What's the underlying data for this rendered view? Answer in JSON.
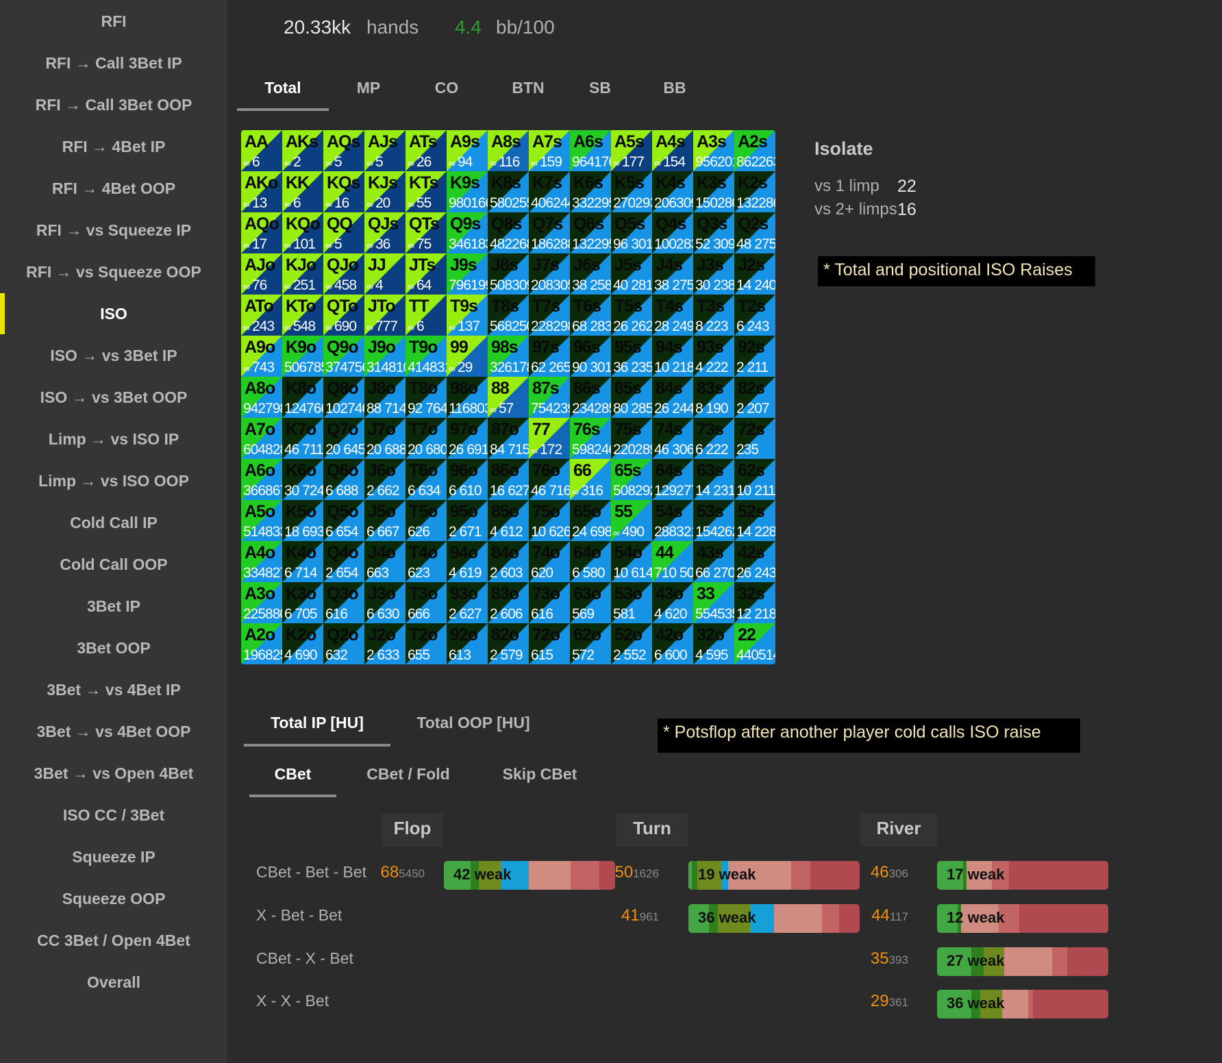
{
  "sidebar": {
    "items": [
      "RFI",
      "RFI → Call 3Bet IP",
      "RFI → Call 3Bet OOP",
      "RFI → 4Bet IP",
      "RFI → 4Bet OOP",
      "RFI → vs Squeeze IP",
      "RFI → vs Squeeze OOP",
      "ISO",
      "ISO → vs 3Bet IP",
      "ISO → vs 3Bet OOP",
      "Limp → vs ISO IP",
      "Limp → vs ISO OOP",
      "Cold Call IP",
      "Cold Call OOP",
      "3Bet IP",
      "3Bet OOP",
      "3Bet → vs 4Bet IP",
      "3Bet → vs 4Bet OOP",
      "3Bet → vs Open 4Bet",
      "ISO CC / 3Bet",
      "Squeeze IP",
      "Squeeze OOP",
      "CC 3Bet / Open 4Bet",
      "Overall"
    ],
    "active_index": 7,
    "active_color": "#e6e600"
  },
  "stats": {
    "hands_value": "20.33kk",
    "hands_label": "hands",
    "bb_value": "4.4",
    "bb_label": "bb/100",
    "bb_color": "#2e9e2e"
  },
  "position_tabs": [
    "Total",
    "MP",
    "CO",
    "BTN",
    "SB",
    "BB"
  ],
  "position_active": 0,
  "grid": {
    "ranks": [
      "A",
      "K",
      "Q",
      "J",
      "T",
      "9",
      "8",
      "7",
      "6",
      "5",
      "4",
      "3",
      "2"
    ],
    "colors": {
      "n": "#0c3f82",
      "b": "#1793e6",
      "m": "#1466b8",
      "L": "#99ee11",
      "g": "#22cc22",
      "G": "#0a2a0a",
      "d": "#0f5a0f"
    },
    "infinity": "∞",
    "rows": [
      "6|n|L,2|n|L,5|n|L,5|n|L,26|n|L,94|b|L,116|m|L,159|b|L,964|b|g,177|n|L,154|n|L,956|b|L,20|b|G,862|b|L,263|b|b",
      "13|n|L,6|n|L,16|n|L,20|n|L,55|n|L,980|b|g,166|b|g,580|b|G,255|b|g,406|b|G,244|b|g,332|b|G,295|b|g,270|b|G,293|b|g,206|b|G,309|b|g,150|b|G,280|b|g,132|b|G,286|b|b",
      "17|n|L,101|n|L,5|n|L,36|n|L,75|n|L,346|b|g,183|b|G,482|b|g,268|b|G,186|b|g,288|b|G,132|b|g,295|b|G,96|b|g,301|b|G,100|b|g,283|b|G,52|b|g,309|b|G,48|b|g,275|b|b",
      "76|n|L,251|n|L,458|n|L,4|n|L,64|n|L,796|b|g,199|b|G,508|b|g,309|b|G,208|b|g,305|b|G,38|b|g,258|b|G,40|b|g,281|b|G,38|b|g,275|b|G,30|b|g,238|b|G,14|b|g,240|b|b"
    ]
  },
  "hands": [
    [
      "AA",
      "∞ 6",
      "n",
      "L"
    ],
    [
      "AKs",
      "∞ 2",
      "n",
      "L"
    ],
    [
      "AQs",
      "∞ 5",
      "n",
      "L"
    ],
    [
      "AJs",
      "∞ 5",
      "n",
      "L"
    ],
    [
      "ATs",
      "∞ 26",
      "n",
      "L"
    ],
    [
      "A9s",
      "∞ 94",
      "b",
      "L"
    ],
    [
      "A8s",
      "∞ 116",
      "m",
      "L"
    ],
    [
      "A7s",
      "∞ 159",
      "b",
      "L"
    ],
    [
      "A6s",
      "964176",
      "b",
      "g"
    ],
    [
      "A5s",
      "∞ 177",
      "n",
      "L"
    ],
    [
      "A4s",
      "∞ 154",
      "n",
      "L"
    ],
    [
      "A3s",
      "956201",
      "b",
      "L"
    ],
    [
      "A2s",
      "862263",
      "b",
      "g"
    ],
    [
      "AKo",
      "∞ 13",
      "n",
      "L"
    ],
    [
      "KK",
      "∞ 6",
      "n",
      "L"
    ],
    [
      "KQs",
      "∞ 16",
      "n",
      "L"
    ],
    [
      "KJs",
      "∞ 20",
      "n",
      "L"
    ],
    [
      "KTs",
      "∞ 55",
      "n",
      "L"
    ],
    [
      "K9s",
      "980166",
      "b",
      "g"
    ],
    [
      "K8s",
      "580255",
      "b",
      "G"
    ],
    [
      "K7s",
      "406244",
      "b",
      "G"
    ],
    [
      "K6s",
      "332295",
      "b",
      "G"
    ],
    [
      "K5s",
      "270293",
      "b",
      "G"
    ],
    [
      "K4s",
      "206309",
      "b",
      "G"
    ],
    [
      "K3s",
      "150280",
      "b",
      "G"
    ],
    [
      "K2s",
      "132286",
      "b",
      "G"
    ],
    [
      "AQo",
      "∞ 17",
      "n",
      "L"
    ],
    [
      "KQo",
      "∞ 101",
      "n",
      "L"
    ],
    [
      "QQ",
      "∞ 5",
      "n",
      "L"
    ],
    [
      "QJs",
      "∞ 36",
      "n",
      "L"
    ],
    [
      "QTs",
      "∞ 75",
      "n",
      "L"
    ],
    [
      "Q9s",
      "346183",
      "b",
      "g"
    ],
    [
      "Q8s",
      "482268",
      "b",
      "G"
    ],
    [
      "Q7s",
      "186288",
      "b",
      "G"
    ],
    [
      "Q6s",
      "132295",
      "b",
      "G"
    ],
    [
      "Q5s",
      "96 301",
      "b",
      "G"
    ],
    [
      "Q4s",
      "100283",
      "b",
      "G"
    ],
    [
      "Q3s",
      "52 309",
      "b",
      "G"
    ],
    [
      "Q2s",
      "48 275",
      "b",
      "G"
    ],
    [
      "AJo",
      "∞ 76",
      "n",
      "L"
    ],
    [
      "KJo",
      "∞ 251",
      "n",
      "L"
    ],
    [
      "QJo",
      "∞ 458",
      "n",
      "L"
    ],
    [
      "JJ",
      "∞ 4",
      "n",
      "L"
    ],
    [
      "JTs",
      "∞ 64",
      "n",
      "L"
    ],
    [
      "J9s",
      "796199",
      "b",
      "g"
    ],
    [
      "J8s",
      "508309",
      "b",
      "G"
    ],
    [
      "J7s",
      "208305",
      "b",
      "G"
    ],
    [
      "J6s",
      "38 258",
      "b",
      "G"
    ],
    [
      "J5s",
      "40 281",
      "b",
      "G"
    ],
    [
      "J4s",
      "38 275",
      "b",
      "G"
    ],
    [
      "J3s",
      "30 238",
      "b",
      "G"
    ],
    [
      "J2s",
      "14 240",
      "b",
      "G"
    ],
    [
      "ATo",
      "∞ 243",
      "n",
      "L"
    ],
    [
      "KTo",
      "∞ 548",
      "n",
      "L"
    ],
    [
      "QTo",
      "∞ 690",
      "n",
      "L"
    ],
    [
      "JTo",
      "∞ 777",
      "n",
      "L"
    ],
    [
      "TT",
      "∞ 6",
      "n",
      "L"
    ],
    [
      "T9s",
      "∞ 137",
      "b",
      "L"
    ],
    [
      "T8s",
      "568250",
      "b",
      "G"
    ],
    [
      "T7s",
      "228298",
      "b",
      "G"
    ],
    [
      "T6s",
      "68 283",
      "b",
      "G"
    ],
    [
      "T5s",
      "26 262",
      "b",
      "G"
    ],
    [
      "T4s",
      "28 249",
      "b",
      "G"
    ],
    [
      "T3s",
      "8 223",
      "b",
      "G"
    ],
    [
      "T2s",
      "6 243",
      "b",
      "G"
    ],
    [
      "A9o",
      "∞ 743",
      "b",
      "L"
    ],
    [
      "K9o",
      "506785",
      "b",
      "g"
    ],
    [
      "Q9o",
      "374756",
      "b",
      "g"
    ],
    [
      "J9o",
      "314810",
      "b",
      "g"
    ],
    [
      "T9o",
      "414831",
      "b",
      "g"
    ],
    [
      "99",
      "∞ 29",
      "m",
      "L"
    ],
    [
      "98s",
      "326178",
      "b",
      "g"
    ],
    [
      "97s",
      "62 265",
      "b",
      "G"
    ],
    [
      "96s",
      "90 301",
      "b",
      "G"
    ],
    [
      "95s",
      "36 235",
      "b",
      "G"
    ],
    [
      "94s",
      "10 218",
      "b",
      "G"
    ],
    [
      "93s",
      "4 222",
      "b",
      "G"
    ],
    [
      "92s",
      "2 211",
      "b",
      "G"
    ],
    [
      "A8o",
      "942798",
      "b",
      "g"
    ],
    [
      "K8o",
      "124766",
      "b",
      "G"
    ],
    [
      "Q8o",
      "102746",
      "b",
      "G"
    ],
    [
      "J8o",
      "88 714",
      "b",
      "G"
    ],
    [
      "T8o",
      "92 764",
      "b",
      "G"
    ],
    [
      "98o",
      "116803",
      "b",
      "G"
    ],
    [
      "88",
      "∞ 57",
      "m",
      "L"
    ],
    [
      "87s",
      "754239",
      "b",
      "g"
    ],
    [
      "86s",
      "234285",
      "b",
      "G"
    ],
    [
      "85s",
      "80 285",
      "b",
      "G"
    ],
    [
      "84s",
      "26 244",
      "b",
      "G"
    ],
    [
      "83s",
      "8 190",
      "b",
      "G"
    ],
    [
      "82s",
      "2 207",
      "b",
      "G"
    ],
    [
      "A7o",
      "604828",
      "b",
      "g"
    ],
    [
      "K7o",
      "46 711",
      "b",
      "G"
    ],
    [
      "Q7o",
      "20 645",
      "b",
      "G"
    ],
    [
      "J7o",
      "20 688",
      "b",
      "G"
    ],
    [
      "T7o",
      "20 680",
      "b",
      "G"
    ],
    [
      "97o",
      "26 691",
      "b",
      "G"
    ],
    [
      "87o",
      "84 715",
      "b",
      "G"
    ],
    [
      "77",
      "∞ 172",
      "m",
      "L"
    ],
    [
      "76s",
      "598246",
      "b",
      "g"
    ],
    [
      "75s",
      "220289",
      "b",
      "G"
    ],
    [
      "74s",
      "46 306",
      "b",
      "G"
    ],
    [
      "73s",
      "6 222",
      "b",
      "G"
    ],
    [
      "72s",
      "235",
      "b",
      "G"
    ],
    [
      "A6o",
      "366867",
      "b",
      "g"
    ],
    [
      "K6o",
      "30 724",
      "b",
      "G"
    ],
    [
      "Q6o",
      "6 688",
      "b",
      "G"
    ],
    [
      "J6o",
      "2 662",
      "b",
      "G"
    ],
    [
      "T6o",
      "6 634",
      "b",
      "G"
    ],
    [
      "96o",
      "6 610",
      "b",
      "G"
    ],
    [
      "86o",
      "16 627",
      "b",
      "G"
    ],
    [
      "76o",
      "46 716",
      "b",
      "G"
    ],
    [
      "66",
      "∞ 316",
      "b",
      "L"
    ],
    [
      "65s",
      "508292",
      "b",
      "g"
    ],
    [
      "64s",
      "129277",
      "b",
      "G"
    ],
    [
      "63s",
      "14 231",
      "b",
      "G"
    ],
    [
      "62s",
      "10 211",
      "b",
      "G"
    ],
    [
      "A5o",
      "514833",
      "b",
      "g"
    ],
    [
      "K5o",
      "18 693",
      "b",
      "G"
    ],
    [
      "Q5o",
      "6 654",
      "b",
      "G"
    ],
    [
      "J5o",
      "6 667",
      "b",
      "G"
    ],
    [
      "T5o",
      "626",
      "b",
      "G"
    ],
    [
      "95o",
      "2 671",
      "b",
      "G"
    ],
    [
      "85o",
      "4 612",
      "b",
      "G"
    ],
    [
      "75o",
      "10 626",
      "b",
      "G"
    ],
    [
      "65o",
      "24 698",
      "b",
      "G"
    ],
    [
      "55",
      "∞ 490",
      "b",
      "g"
    ],
    [
      "54s",
      "288321",
      "b",
      "G"
    ],
    [
      "53s",
      "154262",
      "b",
      "G"
    ],
    [
      "52s",
      "14 228",
      "b",
      "G"
    ],
    [
      "A4o",
      "334827",
      "b",
      "g"
    ],
    [
      "K4o",
      "6 714",
      "b",
      "G"
    ],
    [
      "Q4o",
      "2 654",
      "b",
      "G"
    ],
    [
      "J4o",
      "663",
      "b",
      "G"
    ],
    [
      "T4o",
      "623",
      "b",
      "G"
    ],
    [
      "94o",
      "4 619",
      "b",
      "G"
    ],
    [
      "84o",
      "2 603",
      "b",
      "G"
    ],
    [
      "74o",
      "620",
      "b",
      "G"
    ],
    [
      "64o",
      "6 580",
      "b",
      "G"
    ],
    [
      "54o",
      "10 614",
      "b",
      "G"
    ],
    [
      "44",
      "710 503",
      "b",
      "g"
    ],
    [
      "43s",
      "66 270",
      "b",
      "G"
    ],
    [
      "42s",
      "26 243",
      "b",
      "G"
    ],
    [
      "A3o",
      "225880",
      "b",
      "g"
    ],
    [
      "K3o",
      "6 705",
      "b",
      "G"
    ],
    [
      "Q3o",
      "616",
      "b",
      "G"
    ],
    [
      "J3o",
      "6 630",
      "b",
      "G"
    ],
    [
      "T3o",
      "666",
      "b",
      "G"
    ],
    [
      "93o",
      "2 627",
      "b",
      "G"
    ],
    [
      "83o",
      "2 606",
      "b",
      "G"
    ],
    [
      "73o",
      "616",
      "b",
      "G"
    ],
    [
      "63o",
      "569",
      "b",
      "G"
    ],
    [
      "53o",
      "581",
      "b",
      "G"
    ],
    [
      "43o",
      "4 620",
      "b",
      "G"
    ],
    [
      "33",
      "554535",
      "b",
      "g"
    ],
    [
      "32s",
      "12 218",
      "b",
      "G"
    ],
    [
      "A2o",
      "196825",
      "b",
      "g"
    ],
    [
      "K2o",
      "4 690",
      "b",
      "G"
    ],
    [
      "Q2o",
      "632",
      "b",
      "G"
    ],
    [
      "J2o",
      "2 633",
      "b",
      "G"
    ],
    [
      "T2o",
      "655",
      "b",
      "G"
    ],
    [
      "92o",
      "613",
      "b",
      "G"
    ],
    [
      "82o",
      "2 579",
      "b",
      "G"
    ],
    [
      "72o",
      "615",
      "b",
      "G"
    ],
    [
      "62o",
      "572",
      "b",
      "G"
    ],
    [
      "52o",
      "2 552",
      "b",
      "G"
    ],
    [
      "42o",
      "6 600",
      "b",
      "G"
    ],
    [
      "32o",
      "4 595",
      "b",
      "G"
    ],
    [
      "22",
      "440514",
      "b",
      "g"
    ]
  ],
  "isolate": {
    "title": "Isolate",
    "rows": [
      {
        "label": "vs 1 limp",
        "value": "22"
      },
      {
        "label": "vs 2+ limps",
        "value": "16"
      }
    ]
  },
  "notes": {
    "iso": "* Total and positional ISO Raises",
    "postflop": "* Potsflop after another player cold calls ISO raise"
  },
  "postflop_tabs": [
    "Total IP [HU]",
    "Total OOP [HU]"
  ],
  "action_tabs": [
    "CBet",
    "CBet / Fold",
    "Skip CBet"
  ],
  "streets": [
    "Flop",
    "Turn",
    "River"
  ],
  "lines": [
    {
      "label": "CBet - Bet - Bet",
      "flop": {
        "pct": "68",
        "n": "5450",
        "weak": "42",
        "segs": [
          [
            "#43a843",
            14
          ],
          [
            "#2f7f1f",
            4
          ],
          [
            "#6f8a1e",
            12
          ],
          [
            "#16a0d8",
            14
          ],
          [
            "#d08c80",
            22
          ],
          [
            "#c36464",
            15
          ],
          [
            "#b04a50",
            8
          ]
        ]
      },
      "turn": {
        "pct": "50",
        "n": "1626",
        "weak": "19",
        "segs": [
          [
            "#43a843",
            2
          ],
          [
            "#2f7f1f",
            3
          ],
          [
            "#6f8a1e",
            14
          ],
          [
            "#16a0d8",
            4
          ],
          [
            "#d08c80",
            37
          ],
          [
            "#c36464",
            11
          ],
          [
            "#b04a50",
            29
          ]
        ]
      },
      "river": {
        "pct": "46",
        "n": "306",
        "weak": "17",
        "segs": [
          [
            "#43a843",
            15
          ],
          [
            "#2f7f1f",
            2
          ],
          [
            "#6f8a1e",
            0
          ],
          [
            "#d08c80",
            15
          ],
          [
            "#c36464",
            10
          ],
          [
            "#b04a50",
            58
          ]
        ]
      }
    },
    {
      "label": "X - Bet - Bet",
      "turn": {
        "pct": "41",
        "n": "961",
        "weak": "36",
        "segs": [
          [
            "#43a843",
            12
          ],
          [
            "#2f7f1f",
            5
          ],
          [
            "#6f8a1e",
            19
          ],
          [
            "#16a0d8",
            14
          ],
          [
            "#d08c80",
            28
          ],
          [
            "#c36464",
            10
          ],
          [
            "#b04a50",
            12
          ]
        ]
      },
      "river": {
        "pct": "44",
        "n": "117",
        "weak": "12",
        "segs": [
          [
            "#43a843",
            12
          ],
          [
            "#2f7f1f",
            2
          ],
          [
            "#d08c80",
            22
          ],
          [
            "#c36464",
            12
          ],
          [
            "#b04a50",
            52
          ]
        ]
      }
    },
    {
      "label": "CBet - X - Bet",
      "river": {
        "pct": "35",
        "n": "393",
        "weak": "27",
        "segs": [
          [
            "#43a843",
            20
          ],
          [
            "#2f7f1f",
            7
          ],
          [
            "#6f8a1e",
            12
          ],
          [
            "#d08c80",
            28
          ],
          [
            "#c36464",
            9
          ],
          [
            "#b04a50",
            24
          ]
        ]
      }
    },
    {
      "label": "X - X - Bet",
      "river": {
        "pct": "29",
        "n": "361",
        "weak": "36",
        "segs": [
          [
            "#43a843",
            20
          ],
          [
            "#2f7f1f",
            5
          ],
          [
            "#6f8a1e",
            13
          ],
          [
            "#d08c80",
            15
          ],
          [
            "#c36464",
            3
          ],
          [
            "#b04a50",
            44
          ]
        ]
      }
    }
  ],
  "weak_word": "weak"
}
